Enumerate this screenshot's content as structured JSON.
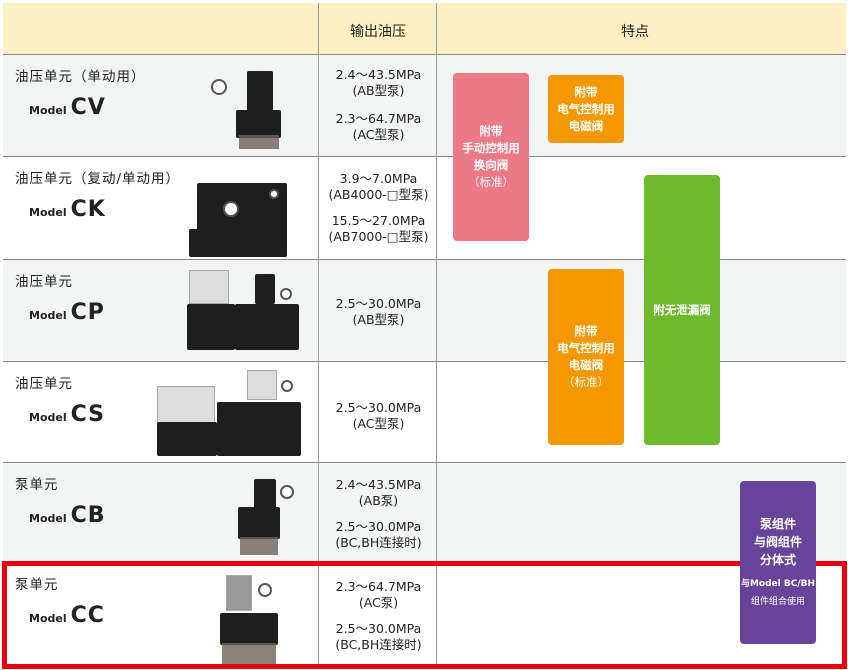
{
  "header": {
    "col_pressure": "输出油压",
    "col_features": "特点"
  },
  "rows": [
    {
      "name": "油压单元（单动用）",
      "model_prefix": "Model",
      "model": "CV",
      "pressures": [
        {
          "value": "2.4～43.5MPa",
          "note": "(AB型泵)"
        },
        {
          "value": "2.3～64.7MPa",
          "note": "(AC型泵)"
        }
      ]
    },
    {
      "name": "油压单元（复动/单动用）",
      "model_prefix": "Model",
      "model": "CK",
      "pressures": [
        {
          "value": "3.9～7.0MPa",
          "note": "(AB4000-□型泵)"
        },
        {
          "value": "15.5～27.0MPa",
          "note": "(AB7000-□型泵)"
        }
      ]
    },
    {
      "name": "油压单元",
      "model_prefix": "Model",
      "model": "CP",
      "pressures": [
        {
          "value": "2.5～30.0MPa",
          "note": "(AB型泵)"
        }
      ]
    },
    {
      "name": "油压单元",
      "model_prefix": "Model",
      "model": "CS",
      "pressures": [
        {
          "value": "2.5～30.0MPa",
          "note": "(AC型泵)"
        }
      ]
    },
    {
      "name": "泵单元",
      "model_prefix": "Model",
      "model": "CB",
      "pressures": [
        {
          "value": "2.4～43.5MPa",
          "note": "(AB泵)"
        },
        {
          "value": "2.5～30.0MPa",
          "note": "(BC,BH连接时)"
        }
      ]
    },
    {
      "name": "泵单元",
      "model_prefix": "Model",
      "model": "CC",
      "pressures": [
        {
          "value": "2.3～64.7MPa",
          "note": "(AC泵)"
        },
        {
          "value": "2.5～30.0MPa",
          "note": "(BC,BH连接时)"
        }
      ]
    }
  ],
  "features": {
    "manual": {
      "lines": [
        "附带",
        "手动控制用",
        "换向阀",
        "（标准）"
      ],
      "color": "#ec7a86"
    },
    "electric": {
      "lines": [
        "附带",
        "电气控制用",
        "电磁阀"
      ],
      "color": "#f39800"
    },
    "electric_std": {
      "lines": [
        "附带",
        "电气控制用",
        "电磁阀",
        "（标准）"
      ],
      "color": "#f39800"
    },
    "no_leak": {
      "lines": [
        "附无泄漏阀"
      ],
      "color": "#6fb92c"
    },
    "separate": {
      "lines": [
        "泵组件",
        "与阀组件",
        "分体式"
      ],
      "sub": [
        "与Model BC/BH",
        "组件组合使用"
      ],
      "color": "#67439a"
    }
  },
  "highlight_color": "#e60012"
}
